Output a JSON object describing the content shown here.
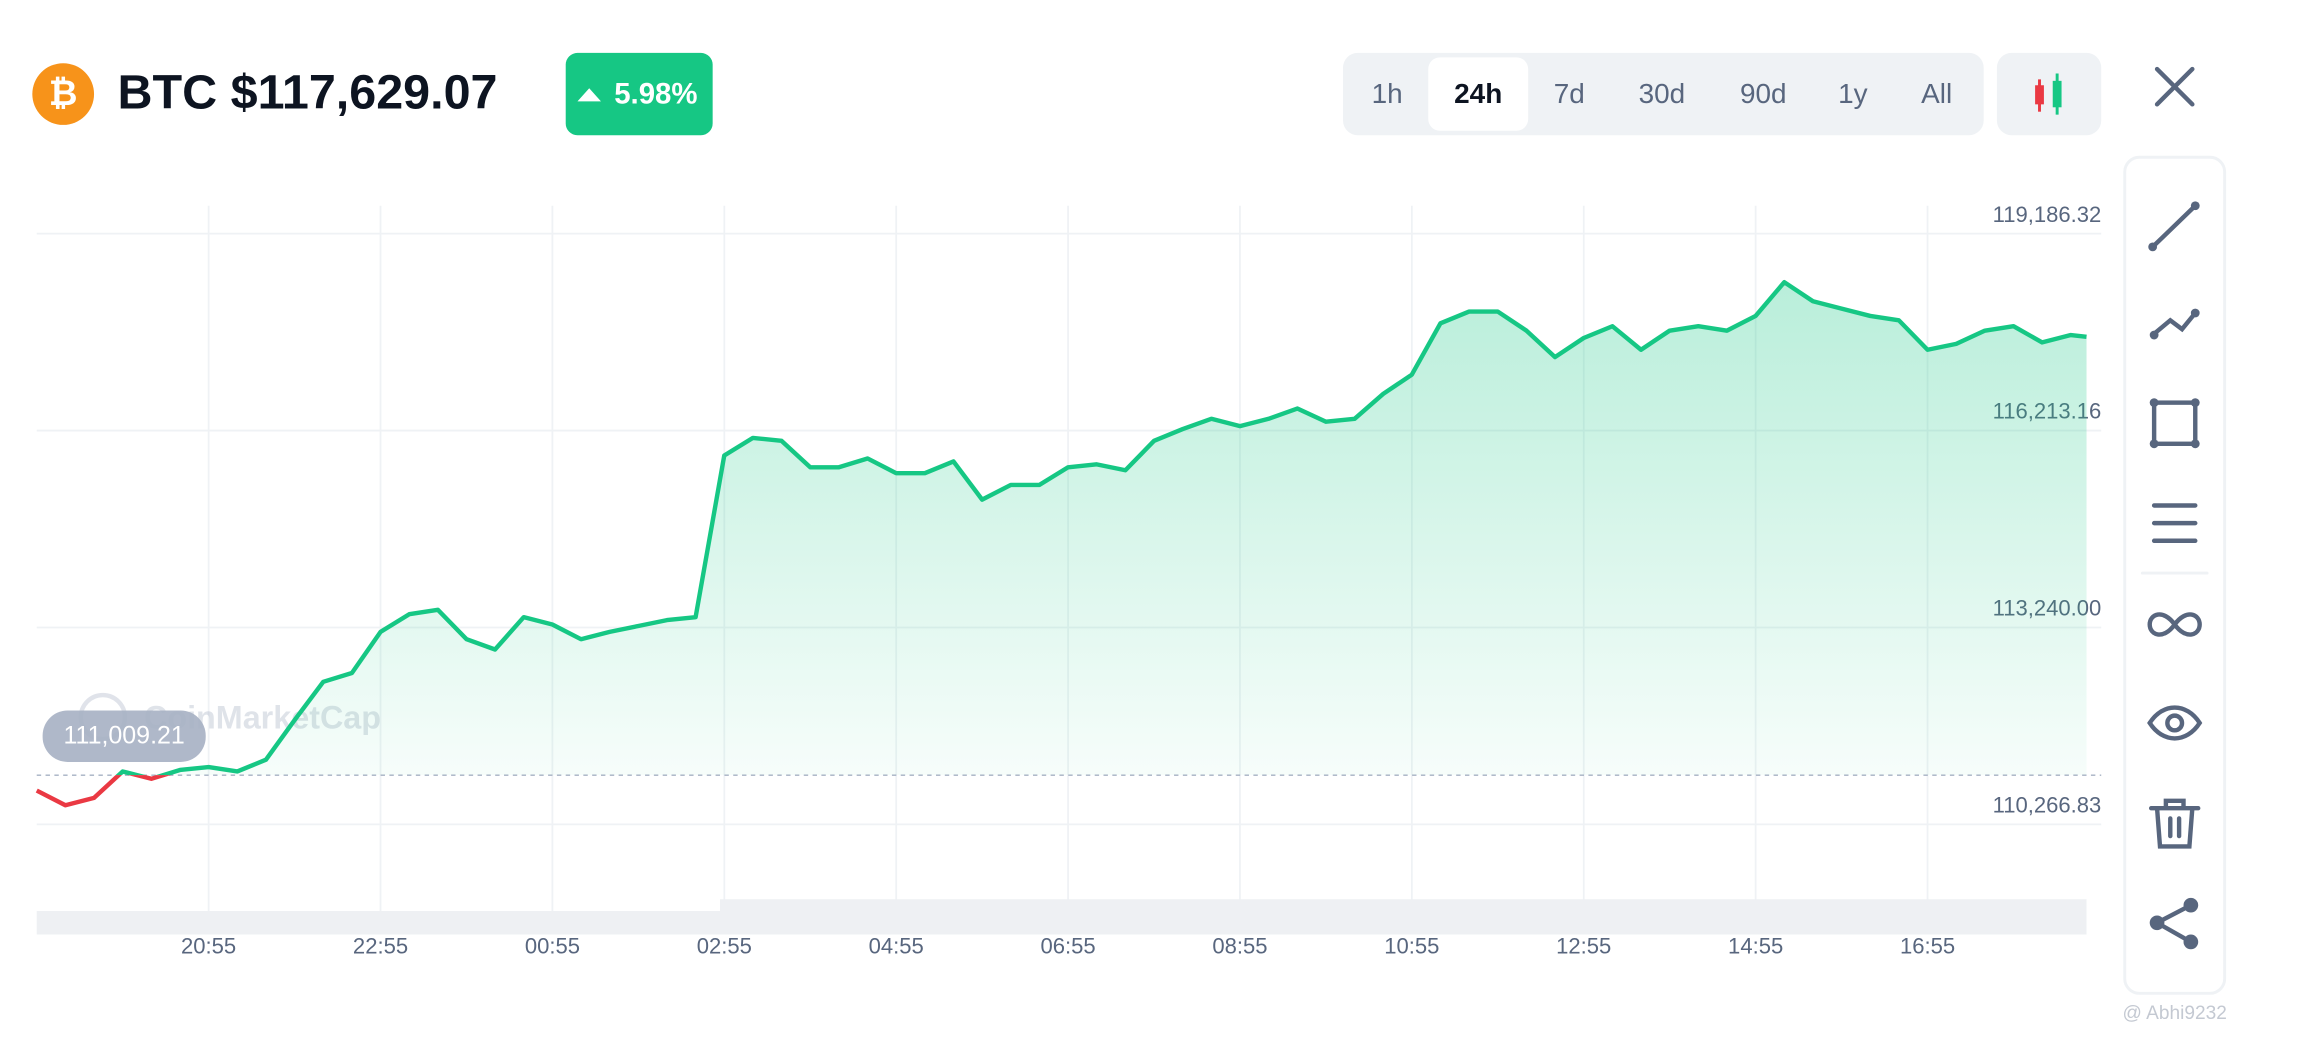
{
  "header": {
    "title": "BTC $117,629.07",
    "change": "5.98%"
  },
  "timeframes": [
    "1h",
    "24h",
    "7d",
    "30d",
    "90d",
    "1y",
    "All"
  ],
  "active_timeframe": 1,
  "watermark": "CoinMarketCap",
  "credit": "@ Abhi9232",
  "chart_data": {
    "type": "line",
    "x": [
      "18:55",
      "19:15",
      "19:35",
      "19:55",
      "20:15",
      "20:35",
      "20:55",
      "21:15",
      "21:35",
      "21:55",
      "22:15",
      "22:35",
      "22:55",
      "23:15",
      "23:35",
      "23:55",
      "00:15",
      "00:35",
      "00:55",
      "01:15",
      "01:35",
      "01:55",
      "02:15",
      "02:35",
      "02:55",
      "03:15",
      "03:35",
      "03:55",
      "04:15",
      "04:35",
      "04:55",
      "05:15",
      "05:35",
      "05:55",
      "06:15",
      "06:35",
      "06:55",
      "07:15",
      "07:35",
      "07:55",
      "08:15",
      "08:35",
      "08:55",
      "09:15",
      "09:35",
      "09:55",
      "10:15",
      "10:35",
      "10:55",
      "11:15",
      "11:35",
      "11:55",
      "12:15",
      "12:35",
      "12:55",
      "13:15",
      "13:35",
      "13:55",
      "14:15",
      "14:35",
      "14:55",
      "15:15",
      "15:35",
      "15:55",
      "16:15",
      "16:35",
      "16:55",
      "17:15",
      "17:35",
      "17:55",
      "18:15",
      "18:35",
      "18:46"
    ],
    "series": [
      {
        "name": "BTC",
        "color": "#16c784",
        "below_color": "#ea3943",
        "values": [
          110777.0,
          110555.2,
          110666.1,
          111065.5,
          110954.6,
          111087.7,
          111132.1,
          111065.5,
          111243.0,
          111842.1,
          112419.0,
          112552.1,
          113173.4,
          113439.6,
          113506.2,
          113062.4,
          112907.1,
          113395.2,
          113284.3,
          113062.4,
          113173.4,
          113262.1,
          113350.9,
          113395.2,
          115835.9,
          116102.2,
          116057.8,
          115658.4,
          115658.4,
          115791.5,
          115569.7,
          115569.7,
          115747.2,
          115170.3,
          115392.2,
          115392.2,
          115658.4,
          115702.8,
          115614.0,
          116057.8,
          116235.3,
          116390.6,
          116279.7,
          116390.6,
          116545.9,
          116346.2,
          116390.6,
          116767.8,
          117056.3,
          117832.8,
          118010.3,
          118010.3,
          117721.9,
          117322.5,
          117611.0,
          117788.5,
          117433.4,
          117721.9,
          117788.5,
          117721.9,
          117943.8,
          118454.1,
          118165.7,
          118054.7,
          117943.8,
          117877.2,
          117433.4,
          117522.2,
          117721.9,
          117788.5,
          117544.4,
          117655.3,
          117629.07
        ]
      }
    ],
    "reference": {
      "value": 111009.21,
      "label": "111,009.21"
    },
    "xlim": [
      "18:55",
      "18:46"
    ],
    "xticks": [
      "20:55",
      "22:55",
      "00:55",
      "02:55",
      "04:55",
      "06:55",
      "08:55",
      "10:55",
      "12:55",
      "14:55",
      "16:55"
    ],
    "ylim": [
      108602.7,
      119607.9
    ],
    "yticks": [
      {
        "value": 110266.83,
        "label": "110,266.83"
      },
      {
        "value": 113240.0,
        "label": "113,240.00"
      },
      {
        "value": 116213.16,
        "label": "116,213.16"
      },
      {
        "value": 119186.32,
        "label": "119,186.32"
      }
    ],
    "grid": true
  }
}
